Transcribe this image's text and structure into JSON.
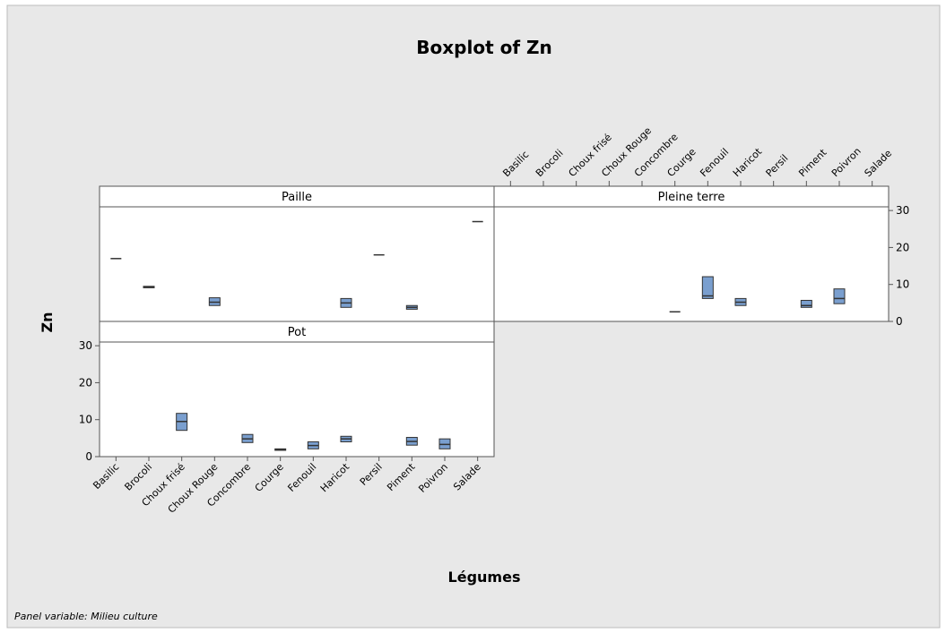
{
  "chart_data": {
    "type": "box",
    "title": "Boxplot of Zn",
    "x_label": "Légumes",
    "y_label": "Zn",
    "footnote": "Panel variable: Milieu culture",
    "categories": [
      "Basilic",
      "Brocoli",
      "Choux frisé",
      "Choux Rouge",
      "Concombre",
      "Courge",
      "Fenouil",
      "Haricot",
      "Persil",
      "Piment",
      "Poivron",
      "Salade"
    ],
    "ylim": [
      0,
      31
    ],
    "yticks": [
      0,
      10,
      20,
      30
    ],
    "color": "#7a9fcf",
    "panels": [
      {
        "name": "Paille",
        "q1": [
          17,
          9.1,
          null,
          4.3,
          null,
          null,
          null,
          3.8,
          18,
          3.3,
          null,
          27
        ],
        "median": [
          17,
          9.3,
          null,
          5.2,
          null,
          null,
          null,
          5.0,
          18,
          3.8,
          null,
          27
        ],
        "q3": [
          17,
          9.5,
          null,
          6.4,
          null,
          null,
          null,
          6.2,
          18,
          4.3,
          null,
          27
        ]
      },
      {
        "name": "Pleine terre",
        "q1": [
          null,
          null,
          null,
          null,
          null,
          2.6,
          6.2,
          4.3,
          null,
          3.8,
          4.8,
          null
        ],
        "median": [
          null,
          null,
          null,
          null,
          null,
          2.6,
          6.9,
          5.2,
          null,
          4.3,
          6.2,
          null
        ],
        "q3": [
          null,
          null,
          null,
          null,
          null,
          2.6,
          12.1,
          6.2,
          null,
          5.7,
          8.8,
          null
        ]
      },
      {
        "name": "Pot",
        "q1": [
          null,
          null,
          7.1,
          null,
          3.8,
          1.7,
          2.1,
          4.0,
          null,
          3.1,
          2.1,
          null
        ],
        "median": [
          null,
          null,
          9.5,
          null,
          4.8,
          1.9,
          3.0,
          4.8,
          null,
          4.1,
          3.3,
          null
        ],
        "q3": [
          null,
          null,
          11.7,
          null,
          6.0,
          2.1,
          4.0,
          5.5,
          null,
          5.2,
          4.8,
          null
        ]
      }
    ]
  }
}
